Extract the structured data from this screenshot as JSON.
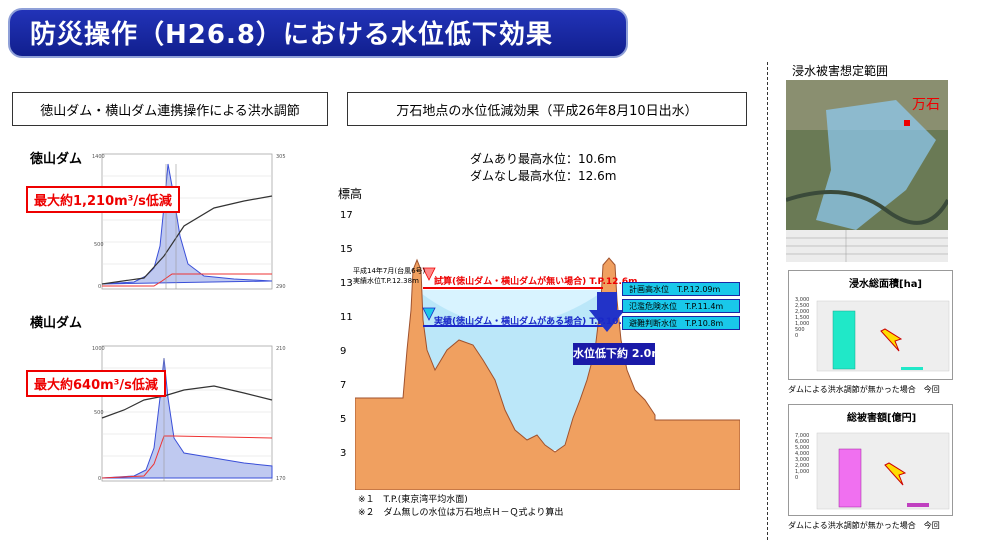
{
  "header": {
    "title": "防災操作（H26.8）における水位低下効果"
  },
  "left_panel": {
    "label": "徳山ダム・横山ダム連携操作による洪水調節",
    "tokuyama": {
      "name": "徳山ダム",
      "callout": "最大約1,210m³/s低減"
    },
    "yokoyama": {
      "name": "横山ダム",
      "callout": "最大約640m³/s低減"
    }
  },
  "middle_panel": {
    "label": "万石地点の水位低減効果（平成26年8月10日出水）",
    "with_dam": "ダムあり最高水位：10.6m",
    "without_dam": "ダムなし最高水位：12.6m",
    "y_axis_label": "標高",
    "y_ticks": [
      "17",
      "15",
      "13",
      "11",
      "9",
      "7",
      "5",
      "3"
    ],
    "levee_note_1": "平成14年7月(台風6号)",
    "levee_note_2": "実績水位T.P.12.38m",
    "estimate_label": "試算(徳山ダム・横山ダムが無い場合) T.P.12.6m",
    "actual_label": "実績(徳山ダム・横山ダムがある場合) T.P.10.6m",
    "plan_level": "計画高水位　T.P.12.09m",
    "danger_level": "氾濫危険水位　T.P.11.4m",
    "evac_level": "避難判断水位　T.P.10.8m",
    "drop_label": "水位低下約 2.0m",
    "footnote1": "※１　T.P.(東京湾平均水面)",
    "footnote2": "※２　ダム無しの水位は万石地点Ｈ－Ｑ式より算出"
  },
  "right_panel": {
    "map_title": "浸水被害想定範囲",
    "map_label": "万石",
    "area_chart": {
      "title": "浸水総面積[ha]",
      "y_ticks": [
        "3,000",
        "2,500",
        "2,000",
        "1,500",
        "1,000",
        "500",
        "0"
      ],
      "caption": "ダムによる洪水調節が無かった場合　今回"
    },
    "damage_chart": {
      "title": "総被害額[億円]",
      "y_ticks": [
        "7,000",
        "6,000",
        "5,000",
        "4,000",
        "3,000",
        "2,000",
        "1,000",
        "0"
      ],
      "caption": "ダムによる洪水調節が無かった場合　今回"
    }
  },
  "colors": {
    "title_bg": "#1a28a6",
    "callout_red": "#e00000",
    "water_light": "#cfefff",
    "ground": "#f0a060",
    "cyan": "#00c8e8"
  }
}
